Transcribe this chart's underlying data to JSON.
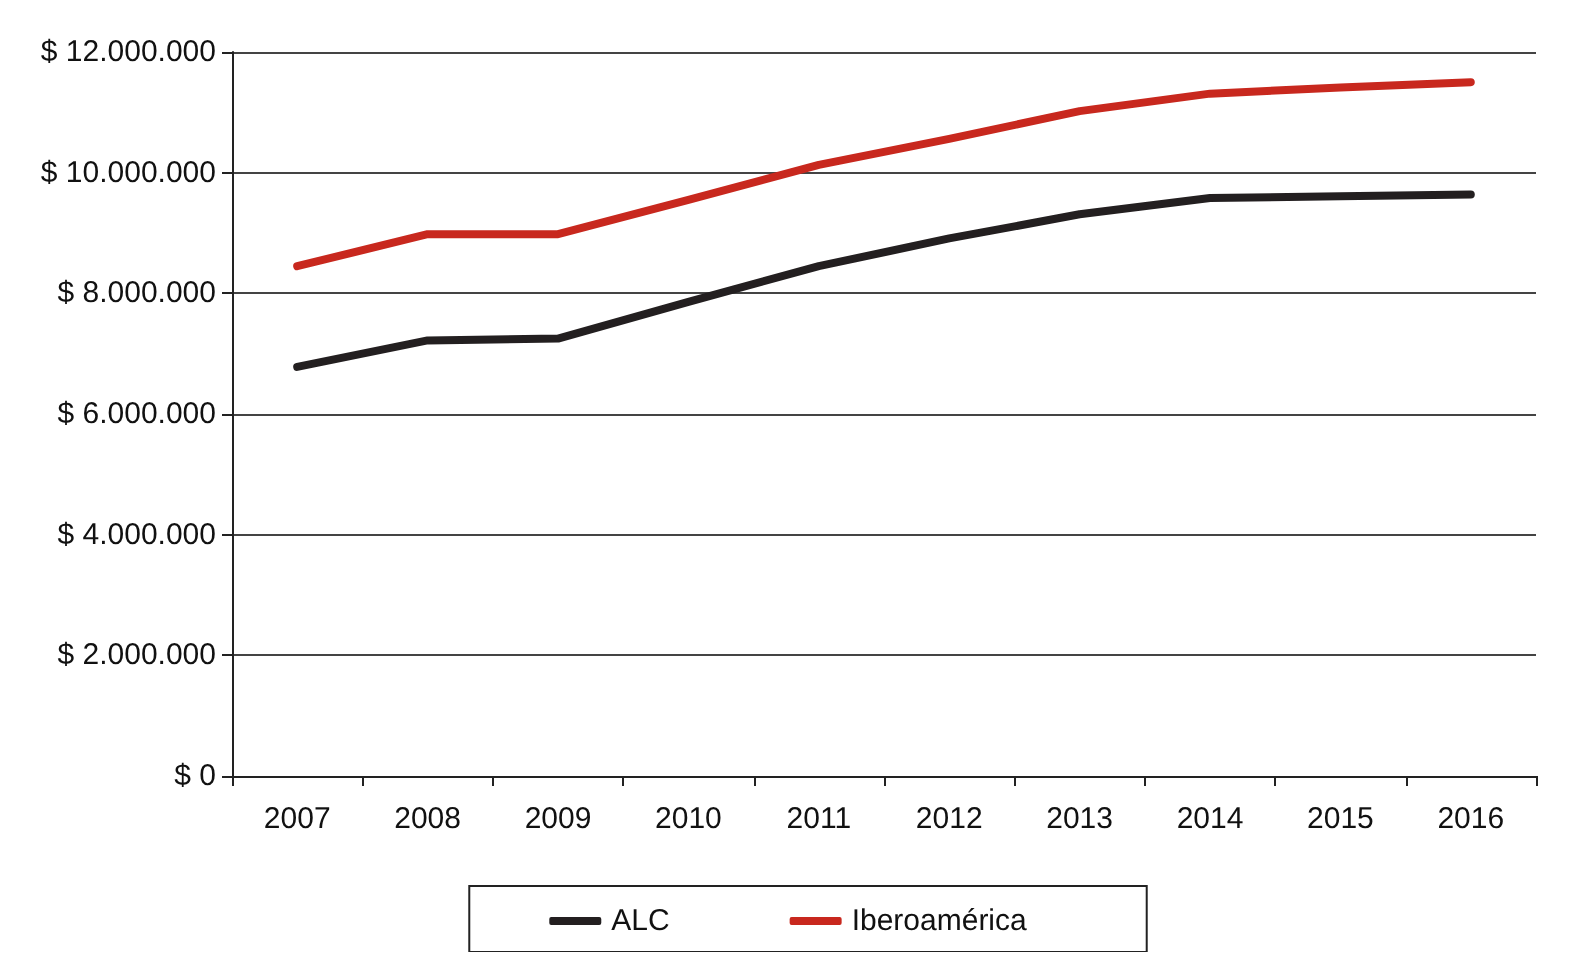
{
  "chart_data": {
    "type": "line",
    "categories": [
      "2007",
      "2008",
      "2009",
      "2010",
      "2011",
      "2012",
      "2013",
      "2014",
      "2015",
      "2016"
    ],
    "series": [
      {
        "name": "ALC",
        "color": "#231f20",
        "values": [
          6780000,
          7220000,
          7250000,
          7860000,
          8450000,
          8910000,
          9310000,
          9580000,
          9610000,
          9640000
        ]
      },
      {
        "name": "Iberoamérica",
        "color": "#c8281e",
        "values": [
          8450000,
          8980000,
          8980000,
          9550000,
          10130000,
          10560000,
          11020000,
          11310000,
          11410000,
          11500000
        ]
      }
    ],
    "ylim": [
      0,
      12000000
    ],
    "yticks": [
      {
        "value": 0,
        "label": "$ 0"
      },
      {
        "value": 2000000,
        "label": "$ 2.000.000"
      },
      {
        "value": 4000000,
        "label": "$ 4.000.000"
      },
      {
        "value": 6000000,
        "label": "$ 6.000.000"
      },
      {
        "value": 8000000,
        "label": "$ 8.000.000"
      },
      {
        "value": 10000000,
        "label": "$ 10.000.000"
      },
      {
        "value": 12000000,
        "label": "$ 12.000.000"
      }
    ],
    "grid": "y",
    "legend": "bottom",
    "marker": "none",
    "line_style": "solid"
  }
}
